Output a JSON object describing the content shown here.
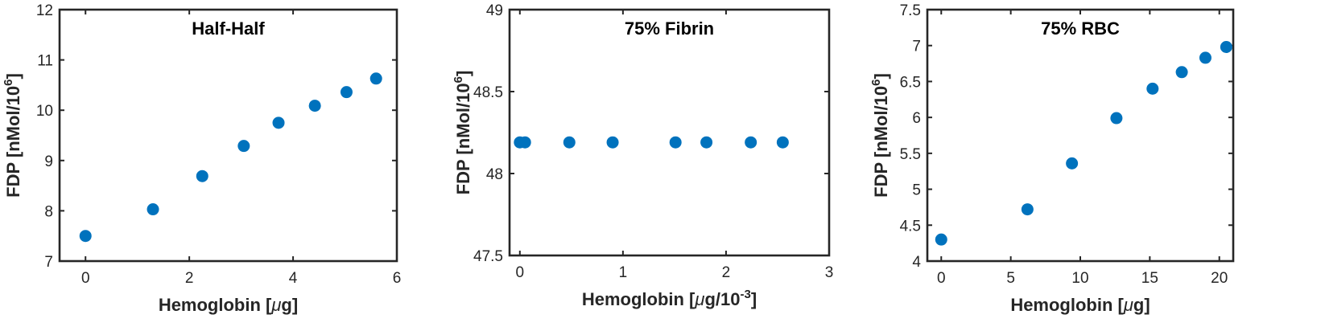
{
  "colors": {
    "marker": "#0072BD",
    "axis": "#262626"
  },
  "chart_data": [
    {
      "type": "scatter",
      "title": "Half-Half",
      "xlabel": {
        "text": "Hemoglobin [",
        "greek": "μ",
        "after": "g]"
      },
      "ylabel": {
        "text": "FDP [nMol/10",
        "sup": "6",
        "after": "]"
      },
      "xlim": [
        -0.5,
        6
      ],
      "ylim": [
        7,
        12
      ],
      "xticks": [
        0,
        2,
        4,
        6
      ],
      "xtick_labels": [
        "0",
        "2",
        "4",
        "6"
      ],
      "yticks": [
        7,
        8,
        9,
        10,
        11,
        12
      ],
      "ytick_labels": [
        "7",
        "8",
        "9",
        "10",
        "11",
        "12"
      ],
      "x": [
        0,
        1.3,
        2.25,
        3.05,
        3.72,
        4.42,
        5.03,
        5.6
      ],
      "y": [
        7.5,
        8.03,
        8.69,
        9.29,
        9.75,
        10.09,
        10.36,
        10.63
      ]
    },
    {
      "type": "scatter",
      "title": "75% Fibrin",
      "xlabel": {
        "text": "Hemoglobin [",
        "greek": "μ",
        "after": "g/10",
        "sup": "-3",
        "after2": "]"
      },
      "ylabel": {
        "text": "FDP [nMol/10",
        "sup": "6",
        "after": "]"
      },
      "xlim": [
        -0.1,
        3
      ],
      "ylim": [
        47.5,
        49
      ],
      "xticks": [
        0,
        1,
        2,
        3
      ],
      "xtick_labels": [
        "0",
        "1",
        "2",
        "3"
      ],
      "yticks": [
        47.5,
        48,
        48.5,
        49
      ],
      "ytick_labels": [
        "47.5",
        "48",
        "48.5",
        "49"
      ],
      "x": [
        0,
        0.05,
        0.48,
        0.9,
        1.51,
        1.81,
        2.24,
        2.55
      ],
      "y": [
        48.19,
        48.19,
        48.19,
        48.19,
        48.19,
        48.19,
        48.19,
        48.19
      ]
    },
    {
      "type": "scatter",
      "title": "75% RBC",
      "xlabel": {
        "text": "Hemoglobin [",
        "greek": "μ",
        "after": "g]"
      },
      "ylabel": {
        "text": "FDP [nMol/10",
        "sup": "6",
        "after": "]"
      },
      "xlim": [
        -1,
        21
      ],
      "ylim": [
        4,
        7.5
      ],
      "xticks": [
        0,
        5,
        10,
        15,
        20
      ],
      "xtick_labels": [
        "0",
        "5",
        "10",
        "15",
        "20"
      ],
      "yticks": [
        4,
        4.5,
        5,
        5.5,
        6,
        6.5,
        7,
        7.5
      ],
      "ytick_labels": [
        "4",
        "4.5",
        "5",
        "5.5",
        "6",
        "6.5",
        "7",
        "7.5"
      ],
      "x": [
        0,
        6.2,
        9.4,
        12.6,
        15.2,
        17.3,
        19.0,
        20.5
      ],
      "y": [
        4.3,
        4.72,
        5.36,
        5.99,
        6.4,
        6.63,
        6.83,
        6.98
      ]
    }
  ]
}
